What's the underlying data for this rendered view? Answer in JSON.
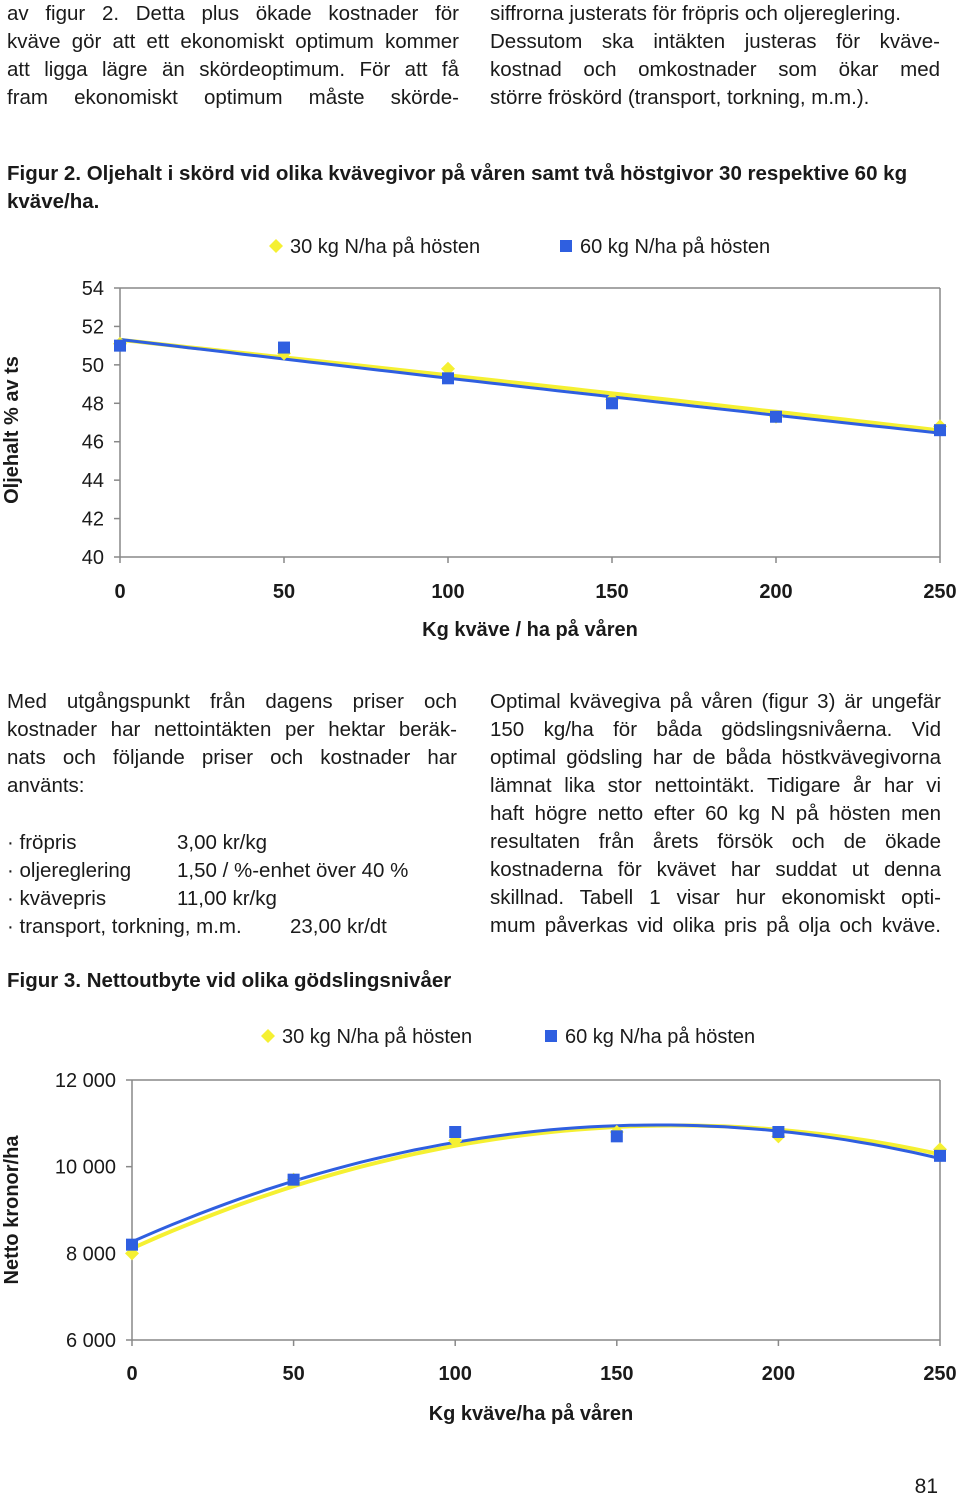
{
  "top_left": {
    "lines": [
      "av figur 2. Detta plus ökade kostnader för",
      "kväve gör att ett ekonomiskt optimum kommer",
      "att ligga lägre än skördeoptimum. För att få",
      "fram ekonomiskt optimum måste skörde-"
    ]
  },
  "top_right": {
    "lines": [
      "siffrorna justerats för fröpris och oljereglering.",
      "Dessutom ska intäkten justeras för kväve-",
      "kostnad och omkostnader som ökar med",
      "större fröskörd (transport, torkning, m.m.)."
    ]
  },
  "figure2": {
    "caption": "Figur 2. Oljehalt i skörd vid olika kvävegivor på våren samt två höstgivor 30 respektive 60 kg kväve/ha."
  },
  "middle_left": {
    "lines": [
      "Med utgångspunkt från dagens priser och",
      "kostnader har nettointäkten per hektar beräk-",
      "nats och följande priser och kostnader har",
      "använts:"
    ]
  },
  "price_list": [
    {
      "label": "· fröpris",
      "value": "3,00 kr/kg"
    },
    {
      "label": "· oljereglering",
      "value": "1,50 / %-enhet över 40 %"
    },
    {
      "label": "· kvävepris",
      "value": "11,00 kr/kg"
    },
    {
      "label": "· transport, torkning, m.m.",
      "value": "23,00 kr/dt"
    }
  ],
  "middle_right": {
    "lines": [
      "Optimal kvävegiva på våren (figur 3) är ungefär",
      "150 kg/ha för båda gödslingsnivåerna. Vid",
      "optimal gödsling har de båda höstkvävegivorna",
      "lämnat lika stor nettointäkt. Tidigare år har vi",
      "haft högre netto efter 60 kg N på hösten men",
      "resultaten från årets försök och de ökade",
      "kostnaderna för kvävet har suddat ut denna",
      "skillnad. Tabell 1 visar hur ekonomiskt opti-",
      "mum påverkas vid olika pris på olja och kväve."
    ]
  },
  "figure3": {
    "caption": "Figur 3. Nettoutbyte vid olika gödslingsnivåer"
  },
  "page_number": "81",
  "colors": {
    "yellow_series": "#f5f032",
    "blue_series": "#2f5fe0",
    "axis": "#888888"
  },
  "chart_data": [
    {
      "type": "scatter",
      "xlabel": "Kg kväve / ha på våren",
      "ylabel": "Oljehalt % av ts",
      "xlim": [
        0,
        250
      ],
      "ylim": [
        40,
        54
      ],
      "x_ticks": [
        "0",
        "50",
        "100",
        "150",
        "200",
        "250"
      ],
      "y_ticks": [
        "54",
        "52",
        "50",
        "48",
        "46",
        "44",
        "42",
        "40"
      ],
      "legend_position": "top",
      "grid": false,
      "trendlines": true,
      "series": [
        {
          "name": "30 kg N/ha på hösten",
          "marker": "diamond",
          "color": "#f5f032",
          "x": [
            0,
            50,
            100,
            150,
            200,
            250
          ],
          "y": [
            51.1,
            50.6,
            49.8,
            48.2,
            47.3,
            46.8
          ]
        },
        {
          "name": "60 kg N/ha på hösten",
          "marker": "square",
          "color": "#2f5fe0",
          "x": [
            0,
            50,
            100,
            150,
            200,
            250
          ],
          "y": [
            51.0,
            50.9,
            49.3,
            48.0,
            47.3,
            46.6
          ]
        }
      ]
    },
    {
      "type": "scatter",
      "xlabel": "Kg kväve/ha på våren",
      "ylabel": "Netto kronor/ha",
      "xlim": [
        0,
        250
      ],
      "ylim": [
        6000,
        12000
      ],
      "x_ticks": [
        "0",
        "50",
        "100",
        "150",
        "200",
        "250"
      ],
      "y_ticks": [
        "12 000",
        "10 000",
        "8 000",
        "6 000"
      ],
      "legend_position": "top",
      "grid": false,
      "trendlines": true,
      "series": [
        {
          "name": "30 kg N/ha på hösten",
          "marker": "diamond",
          "color": "#f5f032",
          "x": [
            0,
            50,
            100,
            150,
            200,
            250
          ],
          "y": [
            8000,
            9700,
            10600,
            10800,
            10700,
            10400
          ]
        },
        {
          "name": "60 kg N/ha på hösten",
          "marker": "square",
          "color": "#2f5fe0",
          "x": [
            0,
            50,
            100,
            150,
            200,
            250
          ],
          "y": [
            8200,
            9700,
            10800,
            10700,
            10800,
            10250
          ]
        }
      ]
    }
  ]
}
